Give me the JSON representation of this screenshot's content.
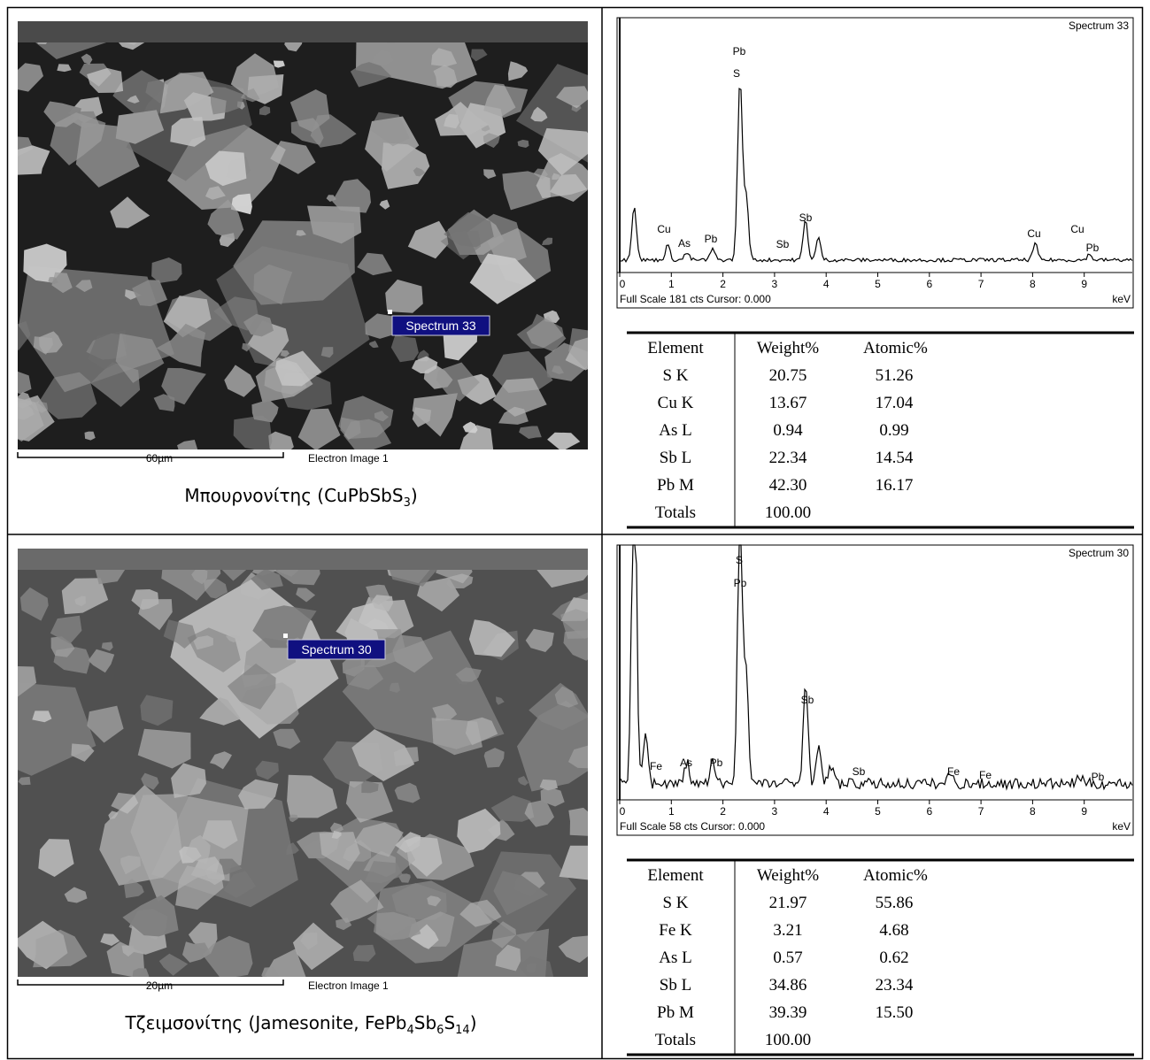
{
  "samples": [
    {
      "image": {
        "scale_bar": "60µm",
        "image_name": "Electron Image 1",
        "spectrum_marker": "Spectrum 33"
      },
      "caption": [
        "Μπουρνονίτης (CuPbSbS",
        "3",
        ")"
      ],
      "spectrum": {
        "title": "Spectrum 33",
        "peak_labels": [
          "Pb",
          "S",
          "Cu",
          "As",
          "Pb",
          "Sb",
          "Sb",
          "Cu",
          "Cu",
          "Pb"
        ],
        "axis_labels": [
          "0",
          "1",
          "2",
          "3",
          "4",
          "5",
          "6",
          "7",
          "8",
          "9"
        ],
        "unit": "keV",
        "footer": "Full Scale 181 cts Cursor: 0.000"
      },
      "table": {
        "header": [
          "Element",
          "Weight%",
          "Atomic%"
        ],
        "rows": [
          [
            "S K",
            "20.75",
            "51.26"
          ],
          [
            "Cu K",
            "13.67",
            "17.04"
          ],
          [
            "As L",
            "0.94",
            "0.99"
          ],
          [
            "Sb L",
            "22.34",
            "14.54"
          ],
          [
            "Pb M",
            "42.30",
            "16.17"
          ],
          [
            "Totals",
            "100.00"
          ]
        ]
      }
    },
    {
      "image": {
        "scale_bar": "20µm",
        "image_name": "Electron Image 1",
        "spectrum_marker": "Spectrum 30"
      },
      "caption": [
        "Τζειμσονίτης (Jamesonite, FePb",
        "4",
        "Sb",
        "6",
        "S",
        "14",
        ")"
      ],
      "spectrum": {
        "title": "Spectrum 30",
        "peak_labels": [
          "S",
          "Pb",
          "Sb",
          "Fe",
          "As",
          "Pb",
          "Sb",
          "Fe",
          "Fe",
          "Pb"
        ],
        "axis_labels": [
          "0",
          "1",
          "2",
          "3",
          "4",
          "5",
          "6",
          "7",
          "8",
          "9"
        ],
        "unit": "keV",
        "footer": "Full Scale 58 cts Cursor: 0.000"
      },
      "table": {
        "header": [
          "Element",
          "Weight%",
          "Atomic%"
        ],
        "rows": [
          [
            "S K",
            "21.97",
            "55.86"
          ],
          [
            "Fe K",
            "3.21",
            "4.68"
          ],
          [
            "As L",
            "0.57",
            "0.62"
          ],
          [
            "Sb L",
            "34.86",
            "23.34"
          ],
          [
            "Pb M",
            "39.39",
            "15.50"
          ],
          [
            "Totals",
            "100.00"
          ]
        ]
      }
    }
  ]
}
